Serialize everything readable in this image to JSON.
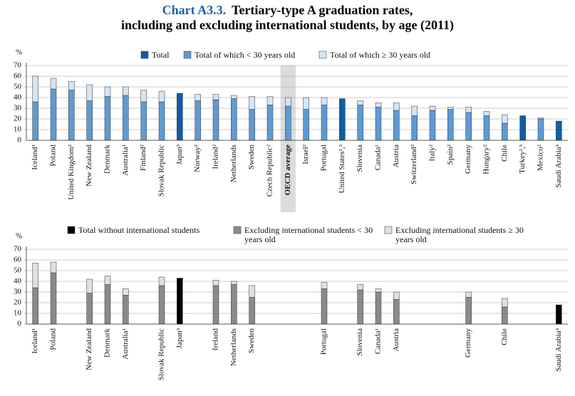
{
  "header": {
    "label": "Chart A3.3.",
    "title": [
      "Tertiary-type A graduation rates,",
      "including and excluding international students, by age (2011)"
    ]
  },
  "chart_data": [
    {
      "type": "bar",
      "stacked": true,
      "ylabel": "%",
      "ylim": [
        0,
        70
      ],
      "yticks": [
        0,
        10,
        20,
        30,
        40,
        50,
        60,
        70
      ],
      "grid": true,
      "highlight": 14,
      "categories": [
        "Iceland¹",
        "Poland",
        "United Kingdom²",
        "New Zealand",
        "Denmark",
        "Australia¹",
        "Finland²",
        "Slovak Republic",
        "Japan³",
        "Norway²",
        "Ireland²",
        "Netherlands",
        "Sweden",
        "Czech Republic²",
        "OECD average",
        "Israel²",
        "Portugal",
        "United States²,³",
        "Slovenia",
        "Canada¹",
        "Austria",
        "Switzerland²",
        "Italy²",
        "Spain²",
        "Germany",
        "Hungary²",
        "Chile",
        "Turkey²,³",
        "Mexico²",
        "Saudi Arabia³"
      ],
      "series": [
        {
          "name": "Total",
          "color": "#0f5ca6",
          "values": [
            null,
            null,
            null,
            null,
            null,
            null,
            null,
            null,
            44,
            null,
            null,
            null,
            null,
            null,
            null,
            null,
            null,
            39,
            null,
            null,
            null,
            null,
            null,
            null,
            null,
            null,
            null,
            23,
            null,
            18
          ]
        },
        {
          "name": "Total of which < 30 years old",
          "color": "#5f9ad3",
          "values": [
            36,
            48,
            47,
            37,
            41,
            42,
            36,
            36,
            null,
            37,
            38,
            39,
            29,
            33,
            32,
            29,
            33,
            null,
            33,
            31,
            28,
            23,
            28,
            29,
            26,
            23,
            16,
            null,
            20,
            null
          ]
        },
        {
          "name": "Total of which ≥ 30 years old",
          "color": "#d5e5f4",
          "values": [
            24,
            10,
            8,
            15,
            9,
            8,
            11,
            10,
            null,
            6,
            5,
            3,
            12,
            8,
            8,
            11,
            7,
            null,
            4,
            4,
            7,
            9,
            4,
            2,
            5,
            4,
            8,
            null,
            1,
            null
          ]
        }
      ]
    },
    {
      "type": "bar",
      "stacked": true,
      "ylabel": "%",
      "ylim": [
        0,
        70
      ],
      "yticks": [
        0,
        10,
        20,
        30,
        40,
        50,
        60,
        70
      ],
      "grid": true,
      "categories": [
        "Iceland¹",
        "Poland",
        null,
        "New Zealand",
        "Denmark",
        "Australia¹",
        null,
        "Slovak Republic",
        "Japan³",
        null,
        "Ireland",
        "Netherlands",
        "Sweden",
        null,
        null,
        null,
        "Portugal",
        null,
        "Slovenia",
        "Canada¹",
        "Austria",
        null,
        null,
        null,
        "Germany",
        null,
        "Chile",
        null,
        null,
        "Saudi Arabia³"
      ],
      "series": [
        {
          "name": "Total without international students",
          "color": "#000000",
          "values": [
            null,
            null,
            null,
            null,
            null,
            null,
            null,
            null,
            43,
            null,
            null,
            null,
            null,
            null,
            null,
            null,
            null,
            null,
            null,
            null,
            null,
            null,
            null,
            null,
            null,
            null,
            null,
            null,
            null,
            18
          ]
        },
        {
          "name": "Excluding international students < 30 years old",
          "color": "#8a8a8a",
          "values": [
            34,
            48,
            null,
            29,
            37,
            27,
            null,
            36,
            null,
            null,
            36,
            37,
            25,
            null,
            null,
            null,
            33,
            null,
            32,
            30,
            23,
            null,
            null,
            null,
            25,
            null,
            16,
            null,
            null,
            null
          ]
        },
        {
          "name": "Excluding international students ≥ 30 years old",
          "color": "#e0e0e0",
          "values": [
            23,
            10,
            null,
            13,
            8,
            6,
            null,
            8,
            null,
            null,
            5,
            3,
            11,
            null,
            null,
            null,
            6,
            null,
            5,
            3,
            7,
            null,
            null,
            null,
            5,
            null,
            8,
            null,
            null,
            null
          ]
        }
      ]
    }
  ]
}
